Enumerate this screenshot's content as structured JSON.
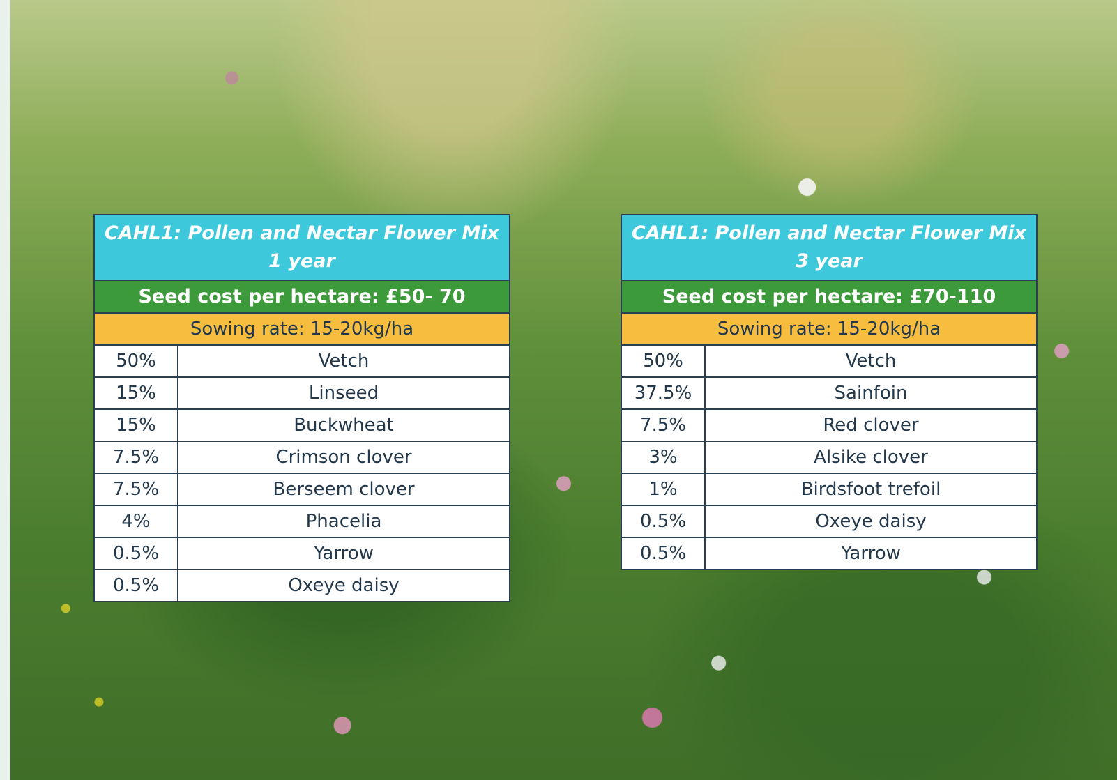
{
  "tables": [
    {
      "title": "CAHL1: Pollen and Nectar Flower Mix",
      "subtitle": "1 year",
      "cost": "Seed cost per hectare: £50- 70",
      "sowing_rate": "Sowing rate: 15-20kg/ha",
      "rows": [
        [
          "50%",
          "Vetch"
        ],
        [
          "15%",
          "Linseed"
        ],
        [
          "15%",
          "Buckwheat"
        ],
        [
          "7.5%",
          "Crimson clover"
        ],
        [
          "7.5%",
          "Berseem clover"
        ],
        [
          "4%",
          "Phacelia"
        ],
        [
          "0.5%",
          "Yarrow"
        ],
        [
          "0.5%",
          "Oxeye daisy"
        ]
      ]
    },
    {
      "title": "CAHL1: Pollen and Nectar Flower Mix",
      "subtitle": "3 year",
      "cost": "Seed cost per hectare: £70-110",
      "sowing_rate": "Sowing rate: 15-20kg/ha",
      "rows": [
        [
          "50%",
          "Vetch"
        ],
        [
          "37.5%",
          "Sainfoin"
        ],
        [
          "7.5%",
          "Red clover"
        ],
        [
          "3%",
          "Alsike clover"
        ],
        [
          "1%",
          "Birdsfoot trefoil"
        ],
        [
          "0.5%",
          "Oxeye daisy"
        ],
        [
          "0.5%",
          "Yarrow"
        ]
      ]
    }
  ]
}
